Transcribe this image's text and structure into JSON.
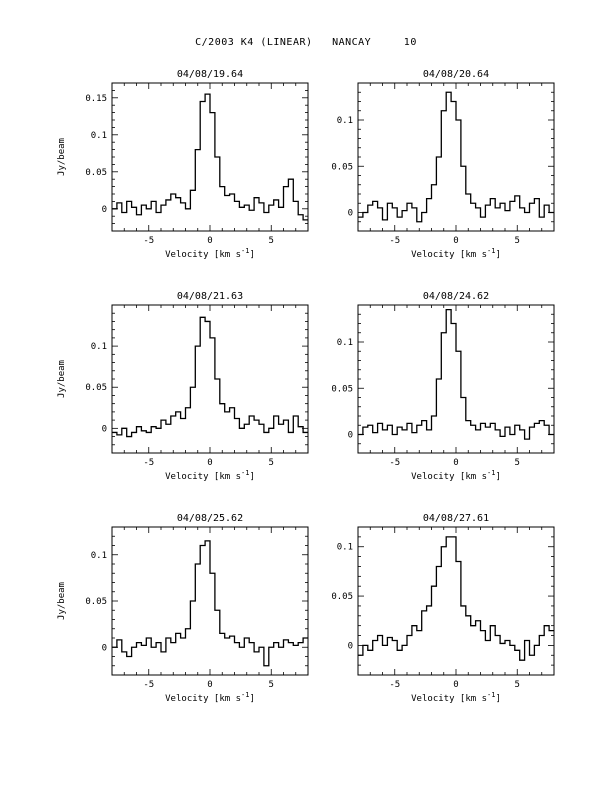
{
  "figure": {
    "title": "C/2003 K4 (LINEAR)   NANCAY     10",
    "background_color": "#ffffff",
    "line_color": "#000000"
  },
  "chart_data": [
    {
      "type": "line",
      "title": "04/08/19.64",
      "xlabel": "Velocity [km s^-1]",
      "ylabel": "Jy/beam",
      "xlim": [
        -8,
        8
      ],
      "ylim": [
        -0.03,
        0.17
      ],
      "xticks": [
        -5,
        0,
        5
      ],
      "yticks": [
        0,
        0.05,
        0.1,
        0.15
      ],
      "ytick_labels": [
        "0",
        "0.05",
        "0.1",
        "0.15"
      ],
      "x": [
        -7.8,
        -7.4,
        -7.0,
        -6.6,
        -6.2,
        -5.8,
        -5.4,
        -5.0,
        -4.6,
        -4.2,
        -3.8,
        -3.4,
        -3.0,
        -2.6,
        -2.2,
        -1.8,
        -1.4,
        -1.0,
        -0.6,
        -0.2,
        0.2,
        0.6,
        1.0,
        1.4,
        1.8,
        2.2,
        2.6,
        3.0,
        3.4,
        3.8,
        4.2,
        4.6,
        5.0,
        5.4,
        5.8,
        6.2,
        6.6,
        7.0,
        7.4,
        7.8
      ],
      "y": [
        0.0,
        0.008,
        -0.005,
        0.01,
        0.002,
        -0.008,
        0.005,
        0.0,
        0.01,
        -0.005,
        0.005,
        0.012,
        0.02,
        0.015,
        0.008,
        0.0,
        0.025,
        0.08,
        0.145,
        0.155,
        0.13,
        0.07,
        0.03,
        0.018,
        0.02,
        0.01,
        0.002,
        0.005,
        -0.002,
        0.015,
        0.008,
        -0.005,
        0.005,
        0.012,
        0.002,
        0.03,
        0.04,
        0.01,
        -0.008,
        -0.015
      ]
    },
    {
      "type": "line",
      "title": "04/08/20.64",
      "xlabel": "Velocity [km s^-1]",
      "ylabel": "",
      "xlim": [
        -8,
        8
      ],
      "ylim": [
        -0.02,
        0.14
      ],
      "xticks": [
        -5,
        0,
        5
      ],
      "yticks": [
        0,
        0.05,
        0.1
      ],
      "ytick_labels": [
        "0",
        "0.05",
        "0.1"
      ],
      "x": [
        -7.8,
        -7.4,
        -7.0,
        -6.6,
        -6.2,
        -5.8,
        -5.4,
        -5.0,
        -4.6,
        -4.2,
        -3.8,
        -3.4,
        -3.0,
        -2.6,
        -2.2,
        -1.8,
        -1.4,
        -1.0,
        -0.6,
        -0.2,
        0.2,
        0.6,
        1.0,
        1.4,
        1.8,
        2.2,
        2.6,
        3.0,
        3.4,
        3.8,
        4.2,
        4.6,
        5.0,
        5.4,
        5.8,
        6.2,
        6.6,
        7.0,
        7.4,
        7.8
      ],
      "y": [
        -0.005,
        0.0,
        0.008,
        0.012,
        0.005,
        -0.008,
        0.01,
        0.005,
        -0.005,
        0.002,
        0.01,
        0.005,
        -0.01,
        0.0,
        0.015,
        0.03,
        0.06,
        0.11,
        0.13,
        0.12,
        0.1,
        0.05,
        0.02,
        0.01,
        0.005,
        -0.005,
        0.008,
        0.015,
        0.005,
        0.01,
        0.002,
        0.012,
        0.018,
        0.005,
        0.0,
        0.01,
        0.015,
        -0.005,
        0.008,
        0.0
      ]
    },
    {
      "type": "line",
      "title": "04/08/21.63",
      "xlabel": "Velocity [km s^-1]",
      "ylabel": "Jy/beam",
      "xlim": [
        -8,
        8
      ],
      "ylim": [
        -0.03,
        0.15
      ],
      "xticks": [
        -5,
        0,
        5
      ],
      "yticks": [
        0,
        0.05,
        0.1
      ],
      "ytick_labels": [
        "0",
        "0.05",
        "0.1"
      ],
      "x": [
        -7.8,
        -7.4,
        -7.0,
        -6.6,
        -6.2,
        -5.8,
        -5.4,
        -5.0,
        -4.6,
        -4.2,
        -3.8,
        -3.4,
        -3.0,
        -2.6,
        -2.2,
        -1.8,
        -1.4,
        -1.0,
        -0.6,
        -0.2,
        0.2,
        0.6,
        1.0,
        1.4,
        1.8,
        2.2,
        2.6,
        3.0,
        3.4,
        3.8,
        4.2,
        4.6,
        5.0,
        5.4,
        5.8,
        6.2,
        6.6,
        7.0,
        7.4,
        7.8
      ],
      "y": [
        -0.005,
        -0.008,
        0.0,
        -0.01,
        -0.005,
        0.002,
        -0.003,
        -0.005,
        0.002,
        0.0,
        0.01,
        0.005,
        0.015,
        0.02,
        0.012,
        0.025,
        0.05,
        0.1,
        0.135,
        0.13,
        0.11,
        0.06,
        0.03,
        0.02,
        0.025,
        0.012,
        0.0,
        0.005,
        0.015,
        0.01,
        0.005,
        -0.005,
        0.0,
        0.015,
        0.005,
        0.01,
        -0.005,
        0.015,
        0.002,
        -0.005
      ]
    },
    {
      "type": "line",
      "title": "04/08/24.62",
      "xlabel": "Velocity [km s^-1]",
      "ylabel": "",
      "xlim": [
        -8,
        8
      ],
      "ylim": [
        -0.02,
        0.14
      ],
      "xticks": [
        -5,
        0,
        5
      ],
      "yticks": [
        0,
        0.05,
        0.1
      ],
      "ytick_labels": [
        "0",
        "0.05",
        "0.1"
      ],
      "x": [
        -7.8,
        -7.4,
        -7.0,
        -6.6,
        -6.2,
        -5.8,
        -5.4,
        -5.0,
        -4.6,
        -4.2,
        -3.8,
        -3.4,
        -3.0,
        -2.6,
        -2.2,
        -1.8,
        -1.4,
        -1.0,
        -0.6,
        -0.2,
        0.2,
        0.6,
        1.0,
        1.4,
        1.8,
        2.2,
        2.6,
        3.0,
        3.4,
        3.8,
        4.2,
        4.6,
        5.0,
        5.4,
        5.8,
        6.2,
        6.6,
        7.0,
        7.4,
        7.8
      ],
      "y": [
        0.0,
        0.008,
        0.01,
        0.002,
        0.012,
        0.005,
        0.01,
        0.0,
        0.008,
        0.005,
        0.012,
        0.002,
        0.01,
        0.015,
        0.005,
        0.02,
        0.06,
        0.11,
        0.135,
        0.12,
        0.09,
        0.04,
        0.015,
        0.01,
        0.005,
        0.012,
        0.008,
        0.012,
        0.005,
        -0.002,
        0.008,
        0.0,
        0.01,
        0.005,
        -0.005,
        0.008,
        0.012,
        0.015,
        0.01,
        0.0
      ]
    },
    {
      "type": "line",
      "title": "04/08/25.62",
      "xlabel": "Velocity [km s^-1]",
      "ylabel": "Jy/beam",
      "xlim": [
        -8,
        8
      ],
      "ylim": [
        -0.03,
        0.13
      ],
      "xticks": [
        -5,
        0,
        5
      ],
      "yticks": [
        0,
        0.05,
        0.1
      ],
      "ytick_labels": [
        "0",
        "0.05",
        "0.1"
      ],
      "x": [
        -7.8,
        -7.4,
        -7.0,
        -6.6,
        -6.2,
        -5.8,
        -5.4,
        -5.0,
        -4.6,
        -4.2,
        -3.8,
        -3.4,
        -3.0,
        -2.6,
        -2.2,
        -1.8,
        -1.4,
        -1.0,
        -0.6,
        -0.2,
        0.2,
        0.6,
        1.0,
        1.4,
        1.8,
        2.2,
        2.6,
        3.0,
        3.4,
        3.8,
        4.2,
        4.6,
        5.0,
        5.4,
        5.8,
        6.2,
        6.6,
        7.0,
        7.4,
        7.8
      ],
      "y": [
        0.0,
        0.008,
        -0.005,
        -0.01,
        0.0,
        0.005,
        0.002,
        0.01,
        0.0,
        0.005,
        -0.005,
        0.01,
        0.005,
        0.015,
        0.01,
        0.02,
        0.05,
        0.09,
        0.11,
        0.115,
        0.08,
        0.04,
        0.015,
        0.01,
        0.012,
        0.005,
        0.0,
        0.01,
        0.005,
        -0.005,
        0.0,
        -0.02,
        0.0,
        0.005,
        0.0,
        0.008,
        0.005,
        0.002,
        0.005,
        0.01
      ]
    },
    {
      "type": "line",
      "title": "04/08/27.61",
      "xlabel": "Velocity [km s^-1]",
      "ylabel": "",
      "xlim": [
        -8,
        8
      ],
      "ylim": [
        -0.03,
        0.12
      ],
      "xticks": [
        -5,
        0,
        5
      ],
      "yticks": [
        0,
        0.05,
        0.1
      ],
      "ytick_labels": [
        "0",
        "0.05",
        "0.1"
      ],
      "x": [
        -7.8,
        -7.4,
        -7.0,
        -6.6,
        -6.2,
        -5.8,
        -5.4,
        -5.0,
        -4.6,
        -4.2,
        -3.8,
        -3.4,
        -3.0,
        -2.6,
        -2.2,
        -1.8,
        -1.4,
        -1.0,
        -0.6,
        -0.2,
        0.2,
        0.6,
        1.0,
        1.4,
        1.8,
        2.2,
        2.6,
        3.0,
        3.4,
        3.8,
        4.2,
        4.6,
        5.0,
        5.4,
        5.8,
        6.2,
        6.6,
        7.0,
        7.4,
        7.8
      ],
      "y": [
        -0.01,
        0.0,
        -0.005,
        0.005,
        0.01,
        0.0,
        0.008,
        0.005,
        -0.005,
        0.0,
        0.01,
        0.02,
        0.015,
        0.035,
        0.04,
        0.06,
        0.08,
        0.1,
        0.11,
        0.11,
        0.085,
        0.04,
        0.03,
        0.02,
        0.025,
        0.015,
        0.005,
        0.02,
        0.01,
        0.002,
        0.005,
        0.0,
        -0.005,
        -0.015,
        0.005,
        -0.01,
        0.0,
        0.01,
        0.02,
        0.015
      ]
    }
  ]
}
